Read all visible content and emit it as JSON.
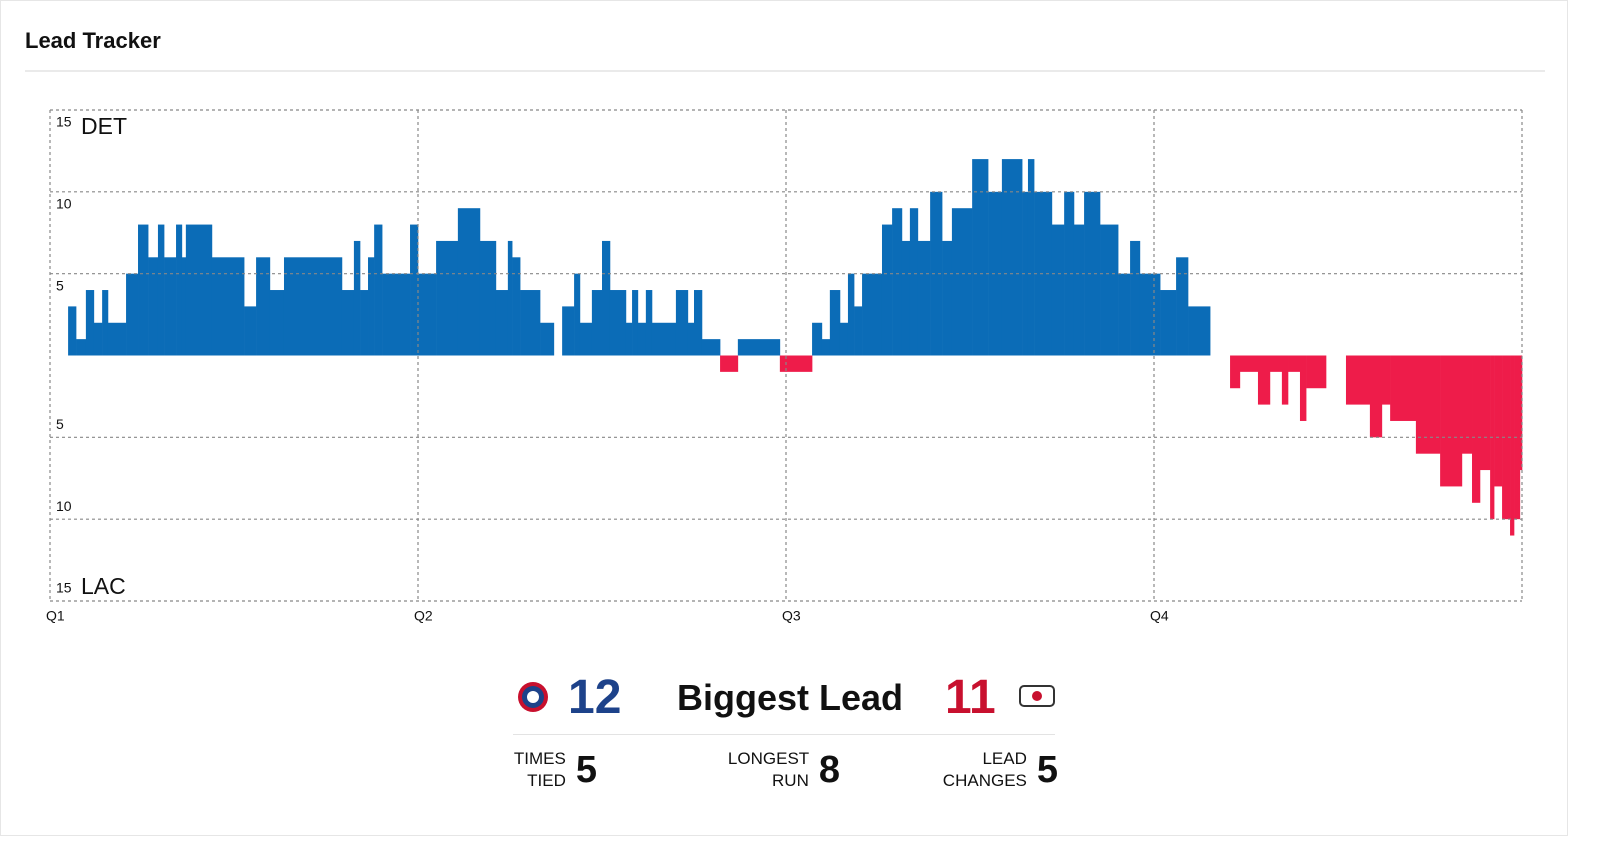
{
  "header": {
    "title": "Lead Tracker"
  },
  "chart_data": {
    "type": "step",
    "top_team": "DET",
    "bottom_team": "LAC",
    "x": [
      0,
      0.59,
      0.85,
      1.17,
      1.43,
      1.7,
      1.89,
      2.48,
      2.87,
      3.2,
      3.52,
      3.72,
      4.11,
      4.3,
      4.43,
      5.28,
      6.33,
      6.72,
      7.17,
      7.63,
      9.52,
      9.91,
      10.11,
      10.37,
      10.57,
      10.83,
      11.74,
      12,
      12.59,
      13.3,
      14.02,
      14.54,
      14.93,
      15.07,
      15.33,
      15.98,
      16.43,
      16.7,
      17.09,
      17.28,
      17.67,
      18,
      18.26,
      18.78,
      18.98,
      19.17,
      19.43,
      19.63,
      20.41,
      20.8,
      21,
      21.26,
      21.85,
      22.43,
      23.8,
      24.85,
      25.17,
      25.43,
      25.76,
      26.02,
      26.22,
      26.48,
      27.13,
      27.46,
      27.78,
      28.04,
      28.3,
      28.7,
      29.09,
      29.41,
      30.07,
      30.59,
      31.04,
      31.7,
      31.89,
      32.09,
      32.67,
      33.07,
      33.39,
      33.72,
      34.24,
      34.83,
      35.22,
      35.54,
      36.2,
      36.72,
      37.11,
      37.83,
      38.48,
      38.8,
      39.39,
      39.78,
      40.17,
      40.37,
      40.76,
      40.96,
      41.61,
      42.26,
      43.04,
      43.43,
      43.7,
      44.54,
      45.33,
      46.04,
      46.37,
      46.63,
      46.96,
      47.09,
      47.35,
      47.61,
      47.74,
      47.93
    ],
    "values": [
      0,
      3,
      1,
      4,
      2,
      4,
      2,
      5,
      8,
      6,
      8,
      6,
      8,
      6,
      8,
      6,
      3,
      6,
      4,
      6,
      4,
      7,
      4,
      6,
      8,
      5,
      8,
      5,
      7,
      9,
      7,
      4,
      7,
      6,
      4,
      2,
      0,
      3,
      5,
      2,
      4,
      7,
      4,
      2,
      4,
      2,
      4,
      2,
      4,
      2,
      4,
      1,
      -1,
      1,
      -1,
      2,
      1,
      4,
      2,
      5,
      3,
      5,
      8,
      9,
      7,
      9,
      7,
      10,
      7,
      9,
      12,
      10,
      12,
      10,
      12,
      10,
      8,
      10,
      8,
      10,
      8,
      5,
      7,
      5,
      4,
      6,
      3,
      0,
      -2,
      -1,
      -3,
      -1,
      -3,
      -1,
      -4,
      -2,
      0,
      -3,
      -5,
      -3,
      -4,
      -6,
      -8,
      -6,
      -9,
      -7,
      -10,
      -8,
      -10,
      -11,
      -10,
      -7
    ],
    "colors": {
      "positive": "#0b6cb7",
      "negative": "#ee1c4a"
    },
    "xlim": [
      0,
      48
    ],
    "xticks": [
      {
        "value": 0,
        "label": "Q1"
      },
      {
        "value": 12,
        "label": "Q2"
      },
      {
        "value": 24,
        "label": "Q3"
      },
      {
        "value": 36,
        "label": "Q4"
      }
    ],
    "ylim": [
      -15,
      15
    ],
    "yticks": [
      15,
      10,
      5,
      {
        "value": -5,
        "label": "5"
      },
      {
        "value": -10,
        "label": "10"
      },
      {
        "value": -15,
        "label": "15"
      }
    ],
    "grid": true
  },
  "stats": {
    "biggest_lead_label": "Biggest Lead",
    "home_biggest_lead": 12,
    "away_biggest_lead": 11,
    "items": [
      {
        "label": "TIMES TIED",
        "value": 5
      },
      {
        "label": "LONGEST RUN",
        "value": 8
      },
      {
        "label": "LEAD CHANGES",
        "value": 5
      }
    ]
  }
}
